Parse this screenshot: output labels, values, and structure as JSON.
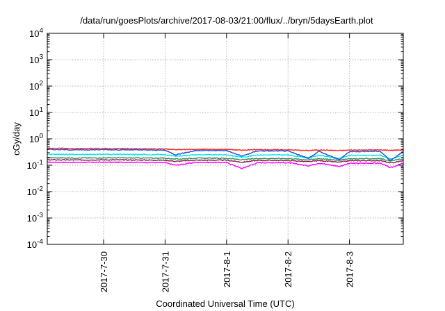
{
  "chart_data": {
    "type": "line",
    "title": "/data/run/goesPlots/archive/2017-08-03/21:00/flux/../bryn/5daysEarth.plot",
    "xlabel": "Coordinated Universal Time (UTC)",
    "ylabel": "cGy/day",
    "yscale": "log",
    "ylim": [
      0.0001,
      10000
    ],
    "xlim": [
      "2017-07-29 02:00",
      "2017-08-03 21:00"
    ],
    "grid": true,
    "legend": "none",
    "y_ticks": [
      {
        "value": 0.0001,
        "base": "10",
        "exp": "-4"
      },
      {
        "value": 0.001,
        "base": "10",
        "exp": "-3"
      },
      {
        "value": 0.01,
        "base": "10",
        "exp": "-2"
      },
      {
        "value": 0.1,
        "base": "10",
        "exp": "-1"
      },
      {
        "value": 1,
        "base": "10",
        "exp": "0"
      },
      {
        "value": 10,
        "base": "10",
        "exp": "1"
      },
      {
        "value": 100,
        "base": "10",
        "exp": "2"
      },
      {
        "value": 1000,
        "base": "10",
        "exp": "3"
      },
      {
        "value": 10000,
        "base": "10",
        "exp": "4"
      }
    ],
    "x_ticks": [
      {
        "date": "2017-07-30",
        "label": "2017-7-30"
      },
      {
        "date": "2017-07-31",
        "label": "2017-7-31"
      },
      {
        "date": "2017-08-01",
        "label": "2017-8-1"
      },
      {
        "date": "2017-08-02",
        "label": "2017-8-2"
      },
      {
        "date": "2017-08-03",
        "label": "2017-8-3"
      }
    ],
    "series": [
      {
        "color": "#ff00ff",
        "points": [
          [
            "2017-07-29 02:00",
            0.13
          ],
          [
            "2017-07-29 14:00",
            0.128
          ],
          [
            "2017-07-30 00:00",
            0.13
          ],
          [
            "2017-07-30 12:00",
            0.129
          ],
          [
            "2017-07-31 00:00",
            0.125
          ],
          [
            "2017-07-31 04:00",
            0.1
          ],
          [
            "2017-07-31 12:00",
            0.128
          ],
          [
            "2017-08-01 00:00",
            0.127
          ],
          [
            "2017-08-01 06:00",
            0.075
          ],
          [
            "2017-08-01 12:00",
            0.125
          ],
          [
            "2017-08-02 00:00",
            0.125
          ],
          [
            "2017-08-02 08:00",
            0.095
          ],
          [
            "2017-08-02 12:00",
            0.12
          ],
          [
            "2017-08-02 20:00",
            0.09
          ],
          [
            "2017-08-03 00:00",
            0.118
          ],
          [
            "2017-08-03 12:00",
            0.12
          ],
          [
            "2017-08-03 16:00",
            0.08
          ],
          [
            "2017-08-03 21:00",
            0.12
          ]
        ]
      },
      {
        "color": "#8b1a4a",
        "points": [
          [
            "2017-07-29 02:00",
            0.16
          ],
          [
            "2017-07-29 14:00",
            0.158
          ],
          [
            "2017-07-30 00:00",
            0.16
          ],
          [
            "2017-07-30 12:00",
            0.158
          ],
          [
            "2017-07-31 00:00",
            0.155
          ],
          [
            "2017-07-31 04:00",
            0.14
          ],
          [
            "2017-07-31 12:00",
            0.155
          ],
          [
            "2017-08-01 00:00",
            0.155
          ],
          [
            "2017-08-01 06:00",
            0.13
          ],
          [
            "2017-08-01 12:00",
            0.152
          ],
          [
            "2017-08-02 00:00",
            0.152
          ],
          [
            "2017-08-02 08:00",
            0.135
          ],
          [
            "2017-08-02 12:00",
            0.15
          ],
          [
            "2017-08-02 20:00",
            0.13
          ],
          [
            "2017-08-03 00:00",
            0.148
          ],
          [
            "2017-08-03 12:00",
            0.15
          ],
          [
            "2017-08-03 16:00",
            0.12
          ],
          [
            "2017-08-03 21:00",
            0.15
          ]
        ]
      },
      {
        "color": "#2e8b57",
        "points": [
          [
            "2017-07-29 02:00",
            0.19
          ],
          [
            "2017-07-29 14:00",
            0.188
          ],
          [
            "2017-07-30 00:00",
            0.19
          ],
          [
            "2017-07-30 12:00",
            0.188
          ],
          [
            "2017-07-31 00:00",
            0.185
          ],
          [
            "2017-07-31 04:00",
            0.17
          ],
          [
            "2017-07-31 12:00",
            0.185
          ],
          [
            "2017-08-01 00:00",
            0.183
          ],
          [
            "2017-08-01 06:00",
            0.16
          ],
          [
            "2017-08-01 12:00",
            0.18
          ],
          [
            "2017-08-02 00:00",
            0.18
          ],
          [
            "2017-08-02 08:00",
            0.16
          ],
          [
            "2017-08-02 12:00",
            0.178
          ],
          [
            "2017-08-02 20:00",
            0.155
          ],
          [
            "2017-08-03 00:00",
            0.175
          ],
          [
            "2017-08-03 12:00",
            0.178
          ],
          [
            "2017-08-03 16:00",
            0.145
          ],
          [
            "2017-08-03 21:00",
            0.178
          ]
        ]
      },
      {
        "color": "#00e5e5",
        "points": [
          [
            "2017-07-29 02:00",
            0.26
          ],
          [
            "2017-07-29 14:00",
            0.255
          ],
          [
            "2017-07-30 00:00",
            0.26
          ],
          [
            "2017-07-30 12:00",
            0.255
          ],
          [
            "2017-07-31 00:00",
            0.25
          ],
          [
            "2017-07-31 04:00",
            0.22
          ],
          [
            "2017-07-31 12:00",
            0.25
          ],
          [
            "2017-08-01 00:00",
            0.248
          ],
          [
            "2017-08-01 06:00",
            0.2
          ],
          [
            "2017-08-01 12:00",
            0.245
          ],
          [
            "2017-08-02 00:00",
            0.245
          ],
          [
            "2017-08-02 08:00",
            0.19
          ],
          [
            "2017-08-02 12:00",
            0.24
          ],
          [
            "2017-08-02 20:00",
            0.18
          ],
          [
            "2017-08-03 00:00",
            0.235
          ],
          [
            "2017-08-03 12:00",
            0.24
          ],
          [
            "2017-08-03 16:00",
            0.17
          ],
          [
            "2017-08-03 21:00",
            0.24
          ]
        ]
      },
      {
        "color": "#ff2020",
        "points": [
          [
            "2017-07-29 02:00",
            0.44
          ],
          [
            "2017-07-29 14:00",
            0.42
          ],
          [
            "2017-07-30 00:00",
            0.43
          ],
          [
            "2017-07-30 12:00",
            0.42
          ],
          [
            "2017-07-31 00:00",
            0.41
          ],
          [
            "2017-07-31 04:00",
            0.39
          ],
          [
            "2017-07-31 12:00",
            0.4
          ],
          [
            "2017-08-01 00:00",
            0.4
          ],
          [
            "2017-08-01 06:00",
            0.37
          ],
          [
            "2017-08-01 12:00",
            0.39
          ],
          [
            "2017-08-02 00:00",
            0.385
          ],
          [
            "2017-08-02 08:00",
            0.36
          ],
          [
            "2017-08-02 12:00",
            0.38
          ],
          [
            "2017-08-02 20:00",
            0.36
          ],
          [
            "2017-08-03 00:00",
            0.375
          ],
          [
            "2017-08-03 12:00",
            0.38
          ],
          [
            "2017-08-03 16:00",
            0.37
          ],
          [
            "2017-08-03 21:00",
            0.38
          ]
        ]
      },
      {
        "color": "#1f4fd8",
        "points": [
          [
            "2017-07-29 02:00",
            0.4
          ],
          [
            "2017-07-29 14:00",
            0.38
          ],
          [
            "2017-07-30 00:00",
            0.39
          ],
          [
            "2017-07-30 12:00",
            0.38
          ],
          [
            "2017-07-31 00:00",
            0.37
          ],
          [
            "2017-07-31 04:00",
            0.25
          ],
          [
            "2017-07-31 12:00",
            0.36
          ],
          [
            "2017-08-01 00:00",
            0.36
          ],
          [
            "2017-08-01 06:00",
            0.22
          ],
          [
            "2017-08-01 12:00",
            0.35
          ],
          [
            "2017-08-02 00:00",
            0.345
          ],
          [
            "2017-08-02 08:00",
            0.18
          ],
          [
            "2017-08-02 12:00",
            0.34
          ],
          [
            "2017-08-02 20:00",
            0.16
          ],
          [
            "2017-08-03 00:00",
            0.33
          ],
          [
            "2017-08-03 12:00",
            0.34
          ],
          [
            "2017-08-03 16:00",
            0.15
          ],
          [
            "2017-08-03 21:00",
            0.34
          ]
        ]
      }
    ]
  }
}
